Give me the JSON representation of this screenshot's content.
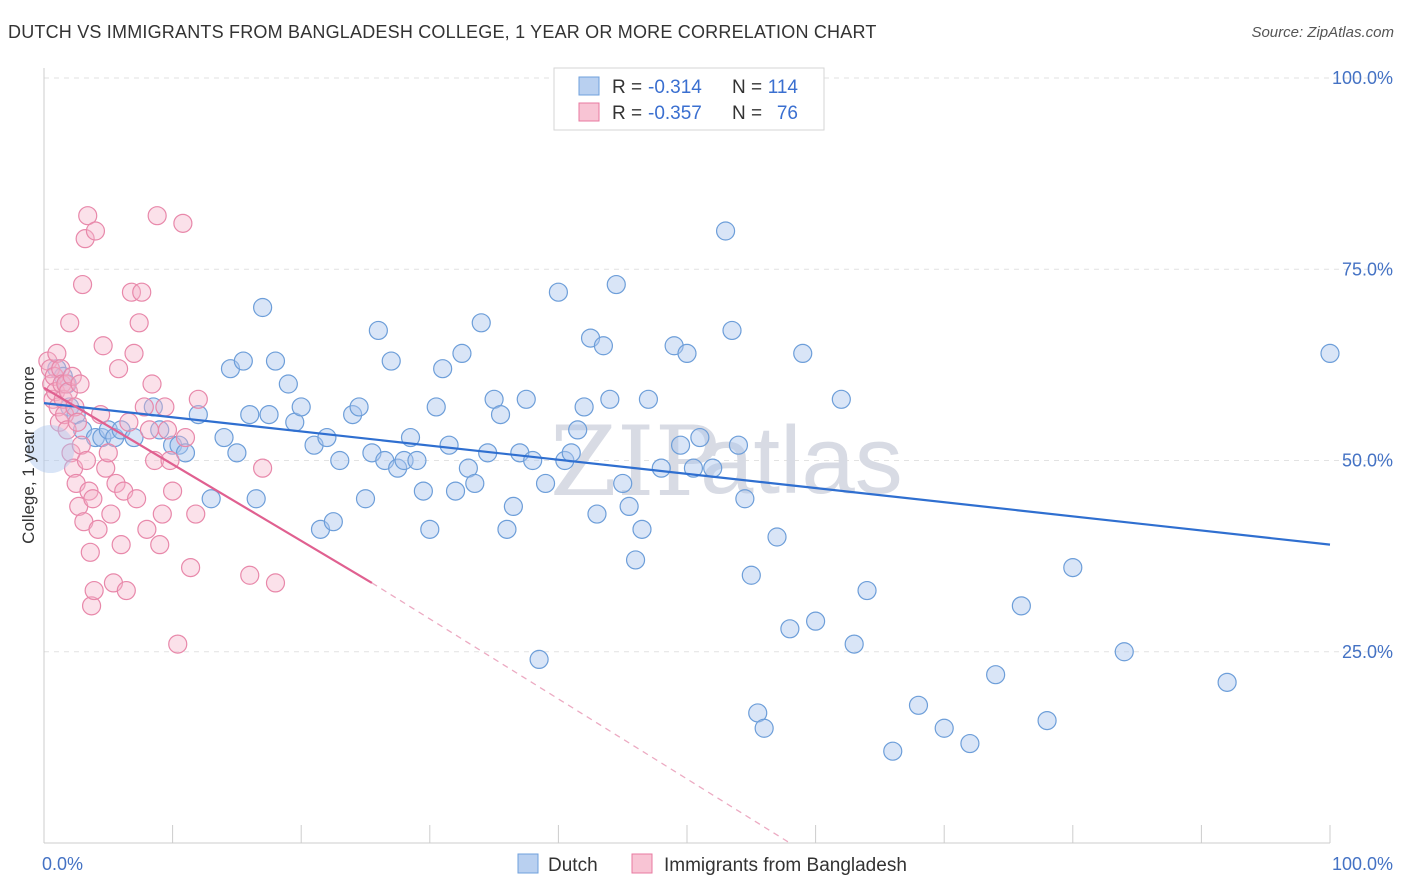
{
  "title": "DUTCH VS IMMIGRANTS FROM BANGLADESH COLLEGE, 1 YEAR OR MORE CORRELATION CHART",
  "source": "Source: ZipAtlas.com",
  "watermark": {
    "zip": "ZIP",
    "atlas": "atlas"
  },
  "legend": {
    "r_label": "R =",
    "n_label": "N =",
    "entries": [
      {
        "name": "Dutch",
        "r": "-0.314",
        "n": "114",
        "color": "#6fa0dc",
        "fill": "#b9d0f0"
      },
      {
        "name": "Immigrants from Bangladesh",
        "r": "-0.357",
        "n": "76",
        "color": "#e87aa0",
        "fill": "#f8c4d4"
      }
    ]
  },
  "chart_data": {
    "type": "scatter",
    "title": "",
    "xlabel": "",
    "ylabel": "College, 1 year or more",
    "xlim": [
      0,
      100
    ],
    "ylim": [
      0,
      100
    ],
    "x_tick_labels": [
      {
        "value": 0,
        "label": "0.0%"
      },
      {
        "value": 100,
        "label": "100.0%"
      }
    ],
    "y_tick_labels": [
      {
        "value": 100,
        "label": "100.0%"
      },
      {
        "value": 75,
        "label": "75.0%"
      },
      {
        "value": 50,
        "label": "50.0%"
      },
      {
        "value": 25,
        "label": "25.0%"
      }
    ],
    "grid": true,
    "legend_position": "top-center",
    "series": [
      {
        "name": "Dutch",
        "color": "#3a78d4",
        "points": [
          [
            1,
            62
          ],
          [
            1.5,
            61
          ],
          [
            1.8,
            60
          ],
          [
            2,
            57
          ],
          [
            2.5,
            56
          ],
          [
            3,
            54
          ],
          [
            4,
            53
          ],
          [
            4.5,
            53
          ],
          [
            5,
            54
          ],
          [
            5.5,
            53
          ],
          [
            6,
            54
          ],
          [
            7,
            53
          ],
          [
            8.5,
            57
          ],
          [
            9,
            54
          ],
          [
            10,
            52
          ],
          [
            10.5,
            52
          ],
          [
            11,
            51
          ],
          [
            12,
            56
          ],
          [
            13,
            45
          ],
          [
            14,
            53
          ],
          [
            14.5,
            62
          ],
          [
            15,
            51
          ],
          [
            15.5,
            63
          ],
          [
            16,
            56
          ],
          [
            16.5,
            45
          ],
          [
            17,
            70
          ],
          [
            17.5,
            56
          ],
          [
            18,
            63
          ],
          [
            19,
            60
          ],
          [
            19.5,
            55
          ],
          [
            20,
            57
          ],
          [
            21,
            52
          ],
          [
            21.5,
            41
          ],
          [
            22,
            53
          ],
          [
            22.5,
            42
          ],
          [
            23,
            50
          ],
          [
            24,
            56
          ],
          [
            24.5,
            57
          ],
          [
            25,
            45
          ],
          [
            25.5,
            51
          ],
          [
            26,
            67
          ],
          [
            26.5,
            50
          ],
          [
            27,
            63
          ],
          [
            27.5,
            49
          ],
          [
            28,
            50
          ],
          [
            28.5,
            53
          ],
          [
            29,
            50
          ],
          [
            29.5,
            46
          ],
          [
            30,
            41
          ],
          [
            30.5,
            57
          ],
          [
            31,
            62
          ],
          [
            31.5,
            52
          ],
          [
            32,
            46
          ],
          [
            32.5,
            64
          ],
          [
            33,
            49
          ],
          [
            33.5,
            47
          ],
          [
            34,
            68
          ],
          [
            34.5,
            51
          ],
          [
            35,
            58
          ],
          [
            35.5,
            56
          ],
          [
            36,
            41
          ],
          [
            36.5,
            44
          ],
          [
            37,
            51
          ],
          [
            37.5,
            58
          ],
          [
            38,
            50
          ],
          [
            38.5,
            24
          ],
          [
            39,
            47
          ],
          [
            40,
            72
          ],
          [
            40.5,
            50
          ],
          [
            41,
            51
          ],
          [
            41.5,
            54
          ],
          [
            42,
            57
          ],
          [
            42.5,
            66
          ],
          [
            43,
            43
          ],
          [
            43.5,
            65
          ],
          [
            44,
            58
          ],
          [
            44.5,
            73
          ],
          [
            45,
            47
          ],
          [
            45.5,
            44
          ],
          [
            46,
            37
          ],
          [
            46.5,
            41
          ],
          [
            47,
            58
          ],
          [
            48,
            49
          ],
          [
            49,
            65
          ],
          [
            49.5,
            52
          ],
          [
            50,
            64
          ],
          [
            50.5,
            49
          ],
          [
            51,
            53
          ],
          [
            52,
            49
          ],
          [
            53,
            80
          ],
          [
            53.5,
            67
          ],
          [
            54,
            52
          ],
          [
            54.5,
            45
          ],
          [
            55,
            35
          ],
          [
            55.5,
            17
          ],
          [
            56,
            15
          ],
          [
            57,
            40
          ],
          [
            58,
            28
          ],
          [
            59,
            64
          ],
          [
            60,
            29
          ],
          [
            62,
            58
          ],
          [
            63,
            26
          ],
          [
            64,
            33
          ],
          [
            66,
            12
          ],
          [
            68,
            18
          ],
          [
            70,
            15
          ],
          [
            72,
            13
          ],
          [
            74,
            22
          ],
          [
            76,
            31
          ],
          [
            78,
            16
          ],
          [
            80,
            36
          ],
          [
            84,
            25
          ],
          [
            92,
            21
          ],
          [
            100,
            64
          ]
        ],
        "trend": {
          "x": [
            0,
            100
          ],
          "y": [
            57.5,
            39.0
          ]
        }
      },
      {
        "name": "Immigrants from Bangladesh",
        "color": "#e06090",
        "points": [
          [
            0.3,
            63
          ],
          [
            0.5,
            62
          ],
          [
            0.6,
            60
          ],
          [
            0.7,
            58
          ],
          [
            0.8,
            61
          ],
          [
            0.9,
            59
          ],
          [
            1,
            64
          ],
          [
            1.1,
            57
          ],
          [
            1.2,
            55
          ],
          [
            1.3,
            62
          ],
          [
            1.4,
            60
          ],
          [
            1.5,
            58
          ],
          [
            1.6,
            56
          ],
          [
            1.7,
            60
          ],
          [
            1.8,
            54
          ],
          [
            1.9,
            59
          ],
          [
            2,
            68
          ],
          [
            2.1,
            51
          ],
          [
            2.2,
            61
          ],
          [
            2.3,
            49
          ],
          [
            2.4,
            57
          ],
          [
            2.5,
            47
          ],
          [
            2.6,
            55
          ],
          [
            2.7,
            44
          ],
          [
            2.8,
            60
          ],
          [
            2.9,
            52
          ],
          [
            3,
            73
          ],
          [
            3.1,
            42
          ],
          [
            3.2,
            79
          ],
          [
            3.3,
            50
          ],
          [
            3.4,
            82
          ],
          [
            3.5,
            46
          ],
          [
            3.6,
            38
          ],
          [
            3.7,
            31
          ],
          [
            3.8,
            45
          ],
          [
            3.9,
            33
          ],
          [
            4,
            80
          ],
          [
            4.2,
            41
          ],
          [
            4.4,
            56
          ],
          [
            4.6,
            65
          ],
          [
            4.8,
            49
          ],
          [
            5,
            51
          ],
          [
            5.2,
            43
          ],
          [
            5.4,
            34
          ],
          [
            5.6,
            47
          ],
          [
            5.8,
            62
          ],
          [
            6,
            39
          ],
          [
            6.2,
            46
          ],
          [
            6.4,
            33
          ],
          [
            6.6,
            55
          ],
          [
            6.8,
            72
          ],
          [
            7,
            64
          ],
          [
            7.2,
            45
          ],
          [
            7.4,
            68
          ],
          [
            7.6,
            72
          ],
          [
            7.8,
            57
          ],
          [
            8,
            41
          ],
          [
            8.2,
            54
          ],
          [
            8.4,
            60
          ],
          [
            8.6,
            50
          ],
          [
            8.8,
            82
          ],
          [
            9,
            39
          ],
          [
            9.2,
            43
          ],
          [
            9.4,
            57
          ],
          [
            9.6,
            54
          ],
          [
            9.8,
            50
          ],
          [
            10,
            46
          ],
          [
            10.4,
            26
          ],
          [
            10.8,
            81
          ],
          [
            11,
            53
          ],
          [
            11.4,
            36
          ],
          [
            11.8,
            43
          ],
          [
            12,
            58
          ],
          [
            16,
            35
          ],
          [
            17,
            49
          ],
          [
            18,
            34
          ]
        ],
        "trend": {
          "x": [
            0,
            25.5
          ],
          "y": [
            59.5,
            34.0
          ]
        },
        "trend_dashed": {
          "x": [
            25.5,
            58
          ],
          "y": [
            34.0,
            0
          ]
        }
      }
    ]
  }
}
